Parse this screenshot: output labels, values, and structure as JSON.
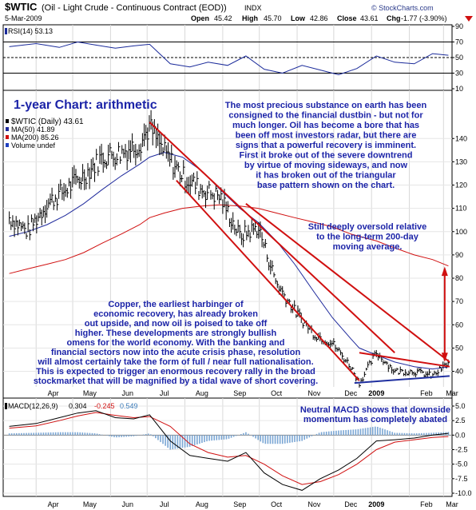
{
  "header": {
    "symbol": "$WTIC",
    "description": "(Oil - Light Crude - Continuous Contract (EOD))",
    "exchange": "INDX",
    "date": "5-Mar-2009",
    "quote": {
      "open_label": "Open",
      "open": "45.42",
      "high_label": "High",
      "high": "45.70",
      "low_label": "Low",
      "low": "42.86",
      "close_label": "Close",
      "close": "43.61",
      "chg_label": "Chg",
      "chg": "-1.77 (-3.90%)",
      "chg_icon": "down-triangle-icon"
    },
    "watermark": "© StockCharts.com"
  },
  "chart_data": [
    {
      "type": "line",
      "panel": "RSI",
      "legend": "RSI(14) 53.13",
      "ylim": [
        10,
        90
      ],
      "yticks": [
        90,
        70,
        50,
        30,
        10
      ],
      "reference_lines": [
        70,
        50,
        30
      ],
      "x": [
        "2008-03-10",
        "2008-04-01",
        "2008-04-20",
        "2008-05-05",
        "2008-05-20",
        "2008-06-05",
        "2008-06-20",
        "2008-07-03",
        "2008-07-20",
        "2008-08-05",
        "2008-08-20",
        "2008-09-05",
        "2008-09-20",
        "2008-10-05",
        "2008-10-20",
        "2008-11-05",
        "2008-11-20",
        "2008-12-05",
        "2008-12-20",
        "2009-01-05",
        "2009-01-20",
        "2009-02-05",
        "2009-02-20",
        "2009-03-05"
      ],
      "series": [
        {
          "name": "",
          "values": [
            64,
            68,
            63,
            70,
            66,
            62,
            65,
            67,
            42,
            38,
            44,
            40,
            52,
            35,
            30,
            40,
            34,
            28,
            36,
            52,
            44,
            42,
            55,
            53
          ]
        }
      ]
    },
    {
      "type": "line",
      "panel": "Price",
      "legend": [
        "$WTIC (Daily) 43.61",
        "MA(50) 41.89",
        "MA(200) 85.26",
        "Volume undef"
      ],
      "legend_colors": [
        "#000000",
        "#1f2a9c",
        "#d01010",
        "#2040c0"
      ],
      "ylim": [
        34,
        160
      ],
      "yticks": [
        140,
        130,
        120,
        110,
        100,
        90,
        80,
        70,
        60,
        50,
        40
      ],
      "x_tick_labels": [
        "Apr",
        "May",
        "Jun",
        "Jul",
        "Aug",
        "Sep",
        "Oct",
        "Nov",
        "Dec",
        "2009",
        "Feb",
        "Mar"
      ],
      "x": [
        "2008-03-10",
        "2008-03-25",
        "2008-04-10",
        "2008-04-25",
        "2008-05-10",
        "2008-05-25",
        "2008-06-10",
        "2008-06-25",
        "2008-07-03",
        "2008-07-15",
        "2008-07-30",
        "2008-08-15",
        "2008-08-30",
        "2008-09-15",
        "2008-09-30",
        "2008-10-15",
        "2008-10-30",
        "2008-11-15",
        "2008-11-30",
        "2008-12-15",
        "2008-12-22",
        "2009-01-05",
        "2009-01-20",
        "2009-02-05",
        "2009-02-20",
        "2009-03-05"
      ],
      "series": [
        {
          "name": "$WTIC",
          "values": [
            106,
            100,
            112,
            118,
            124,
            132,
            134,
            138,
            145,
            134,
            124,
            118,
            115,
            98,
            102,
            78,
            66,
            56,
            52,
            42,
            35,
            48,
            40,
            40,
            38,
            43.61
          ]
        },
        {
          "name": "MA(50)",
          "values": [
            98,
            100,
            103,
            107,
            112,
            118,
            124,
            129,
            132,
            134,
            132,
            126,
            118,
            110,
            104,
            96,
            86,
            74,
            63,
            54,
            50,
            47,
            44,
            42,
            41,
            41.89
          ]
        },
        {
          "name": "MA(200)",
          "values": [
            82,
            84,
            86,
            88,
            91,
            95,
            99,
            103,
            106,
            108,
            110,
            111,
            111.5,
            111,
            110,
            108,
            106,
            104,
            102,
            99,
            98,
            96,
            93,
            90,
            88,
            85.26
          ]
        }
      ],
      "title": "1-year Chart: arithmetic",
      "annotations": [
        "The most precious substance on earth has been consigned to the financial dustbin - but not for much longer. Oil has become a bore that has been off most investors radar, but there are signs that a powerful recovery is imminent. First it broke out of the severe downtrend by virtue of moving sideways, and now it has broken out of the triangular base pattern shown on the chart.",
        "Still deeply oversold relative to the long-term 200-day moving average.",
        "Copper, the earliest harbinger of economic recovery, has already broken out upside, and now oil is poised to take off higher. These developments are strongly bullish omens for the world economy. With the banking and financial sectors now into the acute crisis phase, resolution will almost certainly take the form of full / near full nationalisation. This is expected to trigger an enormous recovery rally in the broad stockmarket that will be magnified by a tidal wave of short covering."
      ]
    },
    {
      "type": "line",
      "panel": "MACD",
      "legend": [
        "MACD(12,26,9)",
        "0.304",
        "-0.245",
        "0.549"
      ],
      "legend_colors": [
        "#000000",
        "#000000",
        "#d01010",
        "#3a7ab8"
      ],
      "ylim": [
        -10,
        5
      ],
      "yticks": [
        5.0,
        2.5,
        0.0,
        -2.5,
        -5.0,
        -7.5,
        -10.0
      ],
      "x_tick_labels": [
        "Apr",
        "May",
        "Jun",
        "Jul",
        "Aug",
        "Sep",
        "Oct",
        "Nov",
        "Dec",
        "2009",
        "Feb",
        "Mar"
      ],
      "x": [
        "2008-03-10",
        "2008-04-01",
        "2008-04-20",
        "2008-05-05",
        "2008-05-20",
        "2008-06-05",
        "2008-06-20",
        "2008-07-03",
        "2008-07-20",
        "2008-08-05",
        "2008-08-20",
        "2008-09-05",
        "2008-09-20",
        "2008-10-05",
        "2008-10-20",
        "2008-11-05",
        "2008-11-20",
        "2008-12-05",
        "2008-12-20",
        "2009-01-05",
        "2009-01-20",
        "2009-02-05",
        "2009-02-20",
        "2009-03-05"
      ],
      "series": [
        {
          "name": "MACD",
          "values": [
            1.5,
            2.0,
            3.0,
            3.8,
            4.2,
            3.0,
            2.8,
            3.5,
            -1.0,
            -3.5,
            -4.0,
            -4.5,
            -3.0,
            -6.5,
            -8.5,
            -9.5,
            -7.5,
            -6.0,
            -4.0,
            -1.0,
            -0.8,
            -0.5,
            0.0,
            0.304
          ]
        },
        {
          "name": "Signal",
          "values": [
            1.2,
            1.6,
            2.5,
            3.3,
            3.9,
            3.4,
            3.0,
            3.2,
            1.5,
            -1.5,
            -3.0,
            -3.8,
            -3.5,
            -5.0,
            -7.0,
            -8.5,
            -8.0,
            -6.8,
            -5.0,
            -2.5,
            -1.2,
            -0.8,
            -0.4,
            -0.245
          ]
        },
        {
          "name": "Histogram",
          "values": [
            0.3,
            0.4,
            0.5,
            0.5,
            0.3,
            -0.4,
            -0.2,
            0.3,
            -2.5,
            -2.0,
            -1.0,
            -0.7,
            0.5,
            -1.5,
            -1.5,
            -1.0,
            0.5,
            0.8,
            1.0,
            1.5,
            0.4,
            0.3,
            0.4,
            0.549
          ]
        }
      ],
      "annotations": [
        "Neutral MACD shows that downside momentum has completely abated"
      ]
    }
  ]
}
